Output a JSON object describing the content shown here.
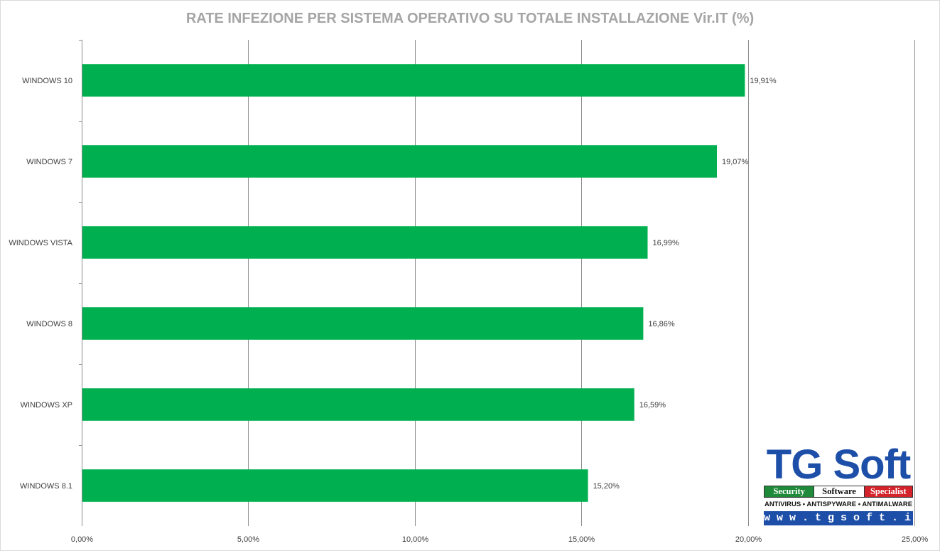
{
  "chart_data": {
    "type": "bar",
    "orientation": "horizontal",
    "title": "RATE INFEZIONE PER SISTEMA OPERATIVO SU TOTALE INSTALLAZIONE Vir.IT (%)",
    "categories": [
      "WINDOWS 10",
      "WINDOWS 7",
      "WINDOWS VISTA",
      "WINDOWS 8",
      "WINDOWS XP",
      "WINDOWS 8.1"
    ],
    "values": [
      19.91,
      19.07,
      16.99,
      16.86,
      16.59,
      15.2
    ],
    "value_labels": [
      "19,91%",
      "19,07%",
      "16,99%",
      "16,86%",
      "16,59%",
      "15,20%"
    ],
    "xlim": [
      0,
      25
    ],
    "x_ticks": [
      0,
      5,
      10,
      15,
      20,
      25
    ],
    "x_tick_labels": [
      "0,00%",
      "5,00%",
      "10,00%",
      "15,00%",
      "20,00%",
      "25,00%"
    ],
    "grid": "vertical",
    "bar_color": "#00b050",
    "legend": "none"
  },
  "logo": {
    "brand": "TG Soft",
    "tagline": [
      "Security",
      "Software",
      "Specialist"
    ],
    "products": "ANTIVIRUS • ANTISPYWARE • ANTIMALWARE",
    "url": "w w w . t g s o f t . i t"
  }
}
